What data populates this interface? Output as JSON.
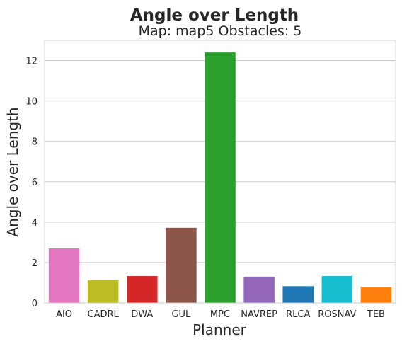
{
  "chart_data": {
    "type": "bar",
    "title": "Angle over Length",
    "subtitle": "Map: map5 Obstacles: 5",
    "xlabel": "Planner",
    "ylabel": "Angle over Length",
    "categories": [
      "AIO",
      "CADRL",
      "DWA",
      "GUL",
      "MPC",
      "NAVREP",
      "RLCA",
      "ROSNAV",
      "TEB"
    ],
    "values": [
      2.7,
      1.12,
      1.33,
      3.72,
      12.4,
      1.3,
      0.83,
      1.33,
      0.8
    ],
    "colors": [
      "#e377c2",
      "#bcbd22",
      "#d62728",
      "#8c564b",
      "#2ca02c",
      "#9467bd",
      "#1f77b4",
      "#17becf",
      "#ff7f0e"
    ],
    "ylim": [
      0,
      13
    ],
    "yticks": [
      0,
      2,
      4,
      6,
      8,
      10,
      12
    ],
    "grid": "horizontal",
    "legend": "none"
  }
}
